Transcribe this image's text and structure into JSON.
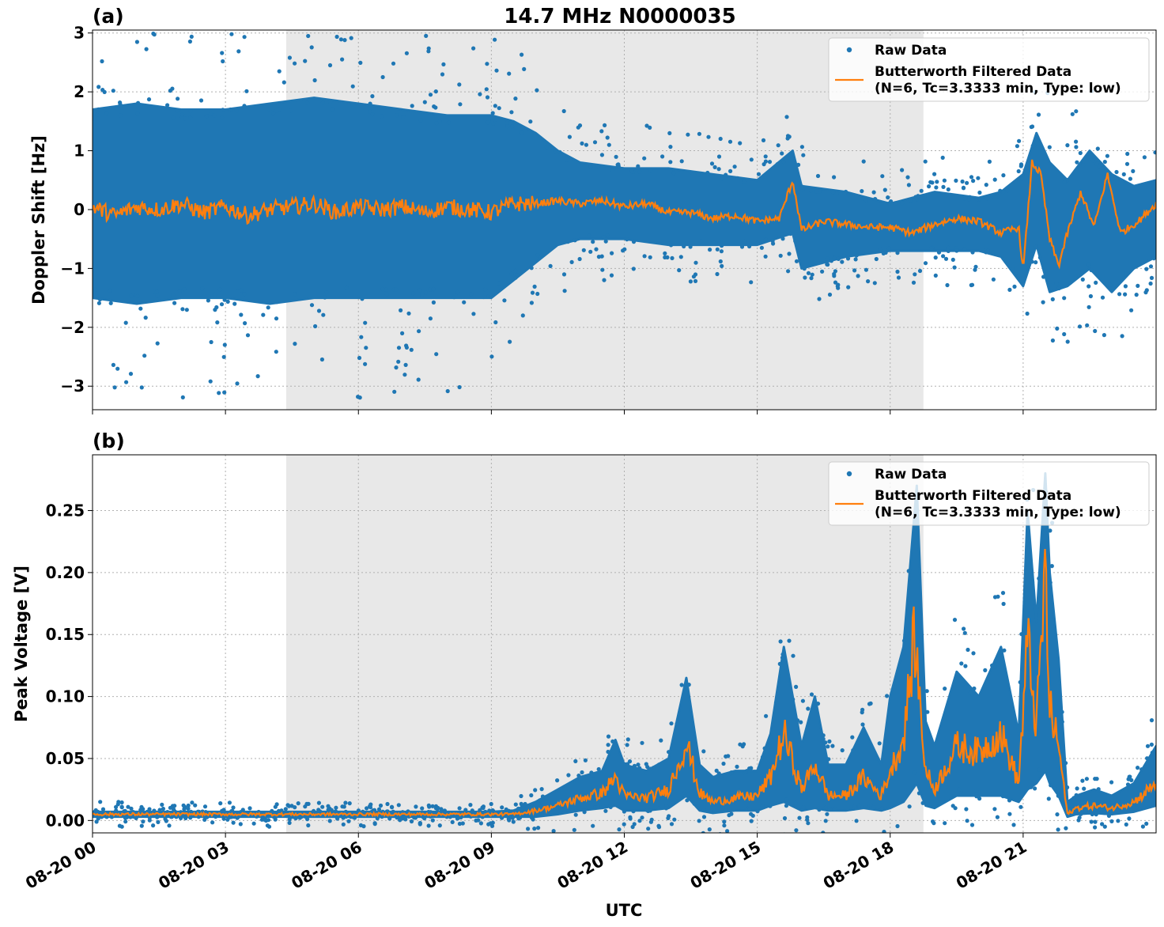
{
  "figure": {
    "title": "14.7 MHz N0000035",
    "xlabel": "UTC",
    "x_ticks": [
      "08-20 00",
      "08-20 03",
      "08-20 06",
      "08-20 09",
      "08-20 12",
      "08-20 15",
      "08-20 18",
      "08-20 21"
    ]
  },
  "colors": {
    "raw": "#1f77b4",
    "filtered": "#ff7f0e",
    "shade": "#e8e8e8",
    "grid": "#b0b0b0"
  },
  "legend": {
    "raw_label": "Raw Data",
    "filtered_label_line1": "Butterworth Filtered Data",
    "filtered_label_line2": "(N=6, Tc=3.3333 min, Type: low)",
    "placement": "upper-right"
  },
  "chart_data": [
    {
      "panel_label": "(a)",
      "type": "scatter",
      "ylabel": "Doppler Shift [Hz]",
      "x_unit": "hours UTC on 08-20",
      "xlim": [
        0,
        24
      ],
      "ylim": [
        -3.4,
        3.05
      ],
      "yticks": [
        -3,
        -2,
        -1,
        0,
        1,
        2,
        3
      ],
      "ytick_labels": [
        "−3",
        "−2",
        "−1",
        "0",
        "1",
        "2",
        "3"
      ],
      "shaded_x_range": [
        4.37,
        18.75
      ],
      "grid": true,
      "series": [
        {
          "name": "Butterworth Filtered Data",
          "kind": "line",
          "x": [
            0,
            0.5,
            1,
            1.5,
            2,
            2.5,
            3,
            3.5,
            4,
            4.5,
            5,
            5.5,
            6,
            6.5,
            7,
            7.5,
            8,
            8.5,
            9,
            9.5,
            10,
            10.5,
            11,
            11.5,
            12,
            12.5,
            13,
            13.5,
            14,
            14.5,
            15,
            15.5,
            15.8,
            16,
            16.5,
            17,
            17.5,
            18,
            18.5,
            19,
            19.5,
            20,
            20.5,
            20.9,
            21,
            21.2,
            21.4,
            21.6,
            21.8,
            22,
            22.3,
            22.6,
            22.9,
            23.2,
            23.6,
            24
          ],
          "y": [
            0.05,
            -0.1,
            0.05,
            0,
            0.1,
            -0.05,
            0.05,
            -0.1,
            0,
            0.05,
            0.1,
            -0.05,
            0.05,
            0,
            0.05,
            -0.05,
            0.05,
            0,
            -0.05,
            0.1,
            0.1,
            0.15,
            0.1,
            0.15,
            0.05,
            0.1,
            -0.05,
            -0.05,
            -0.15,
            -0.1,
            -0.2,
            -0.15,
            0.5,
            -0.35,
            -0.2,
            -0.25,
            -0.3,
            -0.3,
            -0.4,
            -0.25,
            -0.15,
            -0.2,
            -0.4,
            -0.3,
            -1.05,
            0.8,
            0.6,
            -0.5,
            -0.95,
            -0.4,
            0.3,
            -0.3,
            0.6,
            -0.4,
            -0.2,
            0.1
          ]
        },
        {
          "name": "Raw Data",
          "kind": "scatter-envelope",
          "x": [
            0,
            1,
            2,
            3,
            4,
            5,
            6,
            7,
            8,
            9,
            9.5,
            10,
            10.5,
            11,
            12,
            13,
            14,
            15,
            15.8,
            16,
            17,
            18,
            19,
            20,
            20.5,
            21,
            21.3,
            21.6,
            22,
            22.5,
            23,
            23.5,
            24
          ],
          "upper": [
            1.7,
            1.8,
            1.7,
            1.7,
            1.8,
            1.9,
            1.8,
            1.7,
            1.6,
            1.6,
            1.5,
            1.3,
            1.0,
            0.8,
            0.7,
            0.7,
            0.6,
            0.5,
            1.0,
            0.4,
            0.3,
            0.1,
            0.3,
            0.2,
            0.3,
            0.6,
            1.3,
            0.8,
            0.5,
            1.0,
            0.6,
            0.4,
            0.5
          ],
          "lower": [
            -1.5,
            -1.6,
            -1.5,
            -1.5,
            -1.6,
            -1.5,
            -1.5,
            -1.5,
            -1.5,
            -1.5,
            -1.2,
            -0.9,
            -0.6,
            -0.5,
            -0.5,
            -0.6,
            -0.6,
            -0.6,
            -0.4,
            -1.0,
            -0.8,
            -0.7,
            -0.7,
            -0.7,
            -0.8,
            -1.3,
            -0.6,
            -1.4,
            -1.3,
            -1.0,
            -1.4,
            -1.0,
            -0.8
          ]
        }
      ]
    },
    {
      "panel_label": "(b)",
      "type": "scatter",
      "ylabel": "Peak Voltage [V]",
      "x_unit": "hours UTC on 08-20",
      "xlim": [
        0,
        24
      ],
      "ylim": [
        -0.01,
        0.295
      ],
      "yticks": [
        0,
        0.05,
        0.1,
        0.15,
        0.2,
        0.25
      ],
      "ytick_labels": [
        "0.00",
        "0.05",
        "0.10",
        "0.15",
        "0.20",
        "0.25"
      ],
      "shaded_x_range": [
        4.37,
        18.75
      ],
      "grid": true,
      "series": [
        {
          "name": "Butterworth Filtered Data",
          "kind": "line",
          "x": [
            0,
            3,
            6,
            8,
            9.5,
            10,
            10.5,
            11,
            11.5,
            11.8,
            12,
            12.5,
            13,
            13.4,
            13.7,
            14,
            14.5,
            15,
            15.3,
            15.6,
            16,
            16.3,
            16.6,
            17,
            17.4,
            17.8,
            18,
            18.3,
            18.55,
            18.8,
            19,
            19.5,
            20,
            20.5,
            20.9,
            21.1,
            21.3,
            21.5,
            21.6,
            21.8,
            22,
            22.2,
            22.6,
            23,
            23.5,
            24
          ],
          "y": [
            0.005,
            0.005,
            0.005,
            0.005,
            0.005,
            0.008,
            0.012,
            0.018,
            0.022,
            0.035,
            0.02,
            0.018,
            0.025,
            0.063,
            0.022,
            0.015,
            0.018,
            0.02,
            0.035,
            0.07,
            0.025,
            0.045,
            0.02,
            0.02,
            0.035,
            0.02,
            0.04,
            0.065,
            0.148,
            0.04,
            0.025,
            0.06,
            0.055,
            0.07,
            0.03,
            0.145,
            0.075,
            0.2,
            0.09,
            0.06,
            0.005,
            0.01,
            0.012,
            0.01,
            0.015,
            0.03
          ]
        },
        {
          "name": "Raw Data",
          "kind": "scatter-envelope",
          "x": [
            0,
            3,
            6,
            9,
            9.5,
            10,
            10.5,
            11,
            11.5,
            11.8,
            12,
            12.5,
            13,
            13.4,
            13.7,
            14,
            14.5,
            15,
            15.3,
            15.6,
            16,
            16.3,
            16.6,
            17,
            17.4,
            17.8,
            18,
            18.3,
            18.6,
            18.8,
            19,
            19.5,
            20,
            20.5,
            20.9,
            21.1,
            21.3,
            21.5,
            21.6,
            21.8,
            22,
            22.2,
            22.6,
            23,
            23.5,
            24
          ],
          "upper": [
            0.007,
            0.007,
            0.007,
            0.007,
            0.008,
            0.015,
            0.025,
            0.035,
            0.04,
            0.065,
            0.045,
            0.04,
            0.05,
            0.115,
            0.045,
            0.035,
            0.04,
            0.04,
            0.07,
            0.14,
            0.06,
            0.1,
            0.045,
            0.045,
            0.075,
            0.045,
            0.1,
            0.14,
            0.27,
            0.08,
            0.06,
            0.12,
            0.1,
            0.14,
            0.07,
            0.25,
            0.16,
            0.28,
            0.2,
            0.13,
            0.015,
            0.02,
            0.025,
            0.02,
            0.03,
            0.06
          ],
          "lower": [
            0.003,
            0.003,
            0.003,
            0.003,
            0.003,
            0.003,
            0.005,
            0.008,
            0.01,
            0.012,
            0.008,
            0.008,
            0.01,
            0.02,
            0.008,
            0.006,
            0.008,
            0.008,
            0.012,
            0.015,
            0.008,
            0.01,
            0.008,
            0.008,
            0.01,
            0.008,
            0.01,
            0.015,
            0.03,
            0.012,
            0.01,
            0.02,
            0.02,
            0.02,
            0.015,
            0.025,
            0.03,
            0.04,
            0.03,
            0.02,
            0.003,
            0.005,
            0.006,
            0.005,
            0.007,
            0.012
          ]
        }
      ]
    }
  ]
}
